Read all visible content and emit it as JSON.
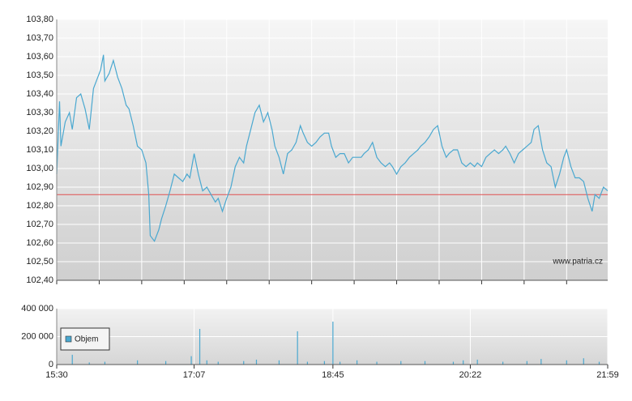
{
  "chart_data": [
    {
      "type": "line",
      "xlim": [
        "15:30",
        "21:59"
      ],
      "ylim": [
        102.4,
        103.8
      ],
      "yticks": [
        {
          "value": 102.4,
          "label": "102,40"
        },
        {
          "value": 102.5,
          "label": "102,50"
        },
        {
          "value": 102.6,
          "label": "102,60"
        },
        {
          "value": 102.7,
          "label": "102,70"
        },
        {
          "value": 102.8,
          "label": "102,80"
        },
        {
          "value": 102.9,
          "label": "102,90"
        },
        {
          "value": 103.0,
          "label": "103,00"
        },
        {
          "value": 103.1,
          "label": "103,10"
        },
        {
          "value": 103.2,
          "label": "103,20"
        },
        {
          "value": 103.3,
          "label": "103,30"
        },
        {
          "value": 103.4,
          "label": "103,40"
        },
        {
          "value": 103.5,
          "label": "103,50"
        },
        {
          "value": 103.6,
          "label": "103,60"
        },
        {
          "value": 103.7,
          "label": "103,70"
        },
        {
          "value": 103.8,
          "label": "103,80"
        }
      ],
      "grid": true,
      "reference": 102.86,
      "reference_color": "#e05050",
      "watermark": "www.patria.cz",
      "color": "#4aa8d0",
      "x": [
        "15:30",
        "15:32",
        "15:33",
        "15:36",
        "15:39",
        "15:41",
        "15:44",
        "15:47",
        "15:50",
        "15:53",
        "15:56",
        "15:59",
        "16:01",
        "16:03",
        "16:04",
        "16:07",
        "16:10",
        "16:13",
        "16:16",
        "16:19",
        "16:21",
        "16:24",
        "16:27",
        "16:30",
        "16:33",
        "16:35",
        "16:36",
        "16:39",
        "16:42",
        "16:44",
        "16:47",
        "16:50",
        "16:53",
        "16:56",
        "16:59",
        "17:02",
        "17:04",
        "17:07",
        "17:10",
        "17:13",
        "17:16",
        "17:19",
        "17:22",
        "17:24",
        "17:27",
        "17:30",
        "17:33",
        "17:36",
        "17:39",
        "17:42",
        "17:44",
        "17:47",
        "17:50",
        "17:53",
        "17:56",
        "17:59",
        "18:02",
        "18:04",
        "18:07",
        "18:10",
        "18:13",
        "18:16",
        "18:19",
        "18:22",
        "18:24",
        "18:27",
        "18:30",
        "18:33",
        "18:36",
        "18:39",
        "18:42",
        "18:44",
        "18:47",
        "18:50",
        "18:53",
        "18:56",
        "18:59",
        "19:02",
        "19:05",
        "19:07",
        "19:10",
        "19:13",
        "19:16",
        "19:19",
        "19:22",
        "19:25",
        "19:27",
        "19:30",
        "19:33",
        "19:36",
        "19:39",
        "19:42",
        "19:45",
        "19:47",
        "19:50",
        "19:53",
        "19:56",
        "19:59",
        "20:02",
        "20:05",
        "20:07",
        "20:10",
        "20:13",
        "20:16",
        "20:19",
        "20:22",
        "20:25",
        "20:27",
        "20:30",
        "20:33",
        "20:36",
        "20:39",
        "20:42",
        "20:45",
        "20:47",
        "20:50",
        "20:53",
        "20:56",
        "20:59",
        "21:02",
        "21:05",
        "21:07",
        "21:10",
        "21:13",
        "21:16",
        "21:19",
        "21:22",
        "21:25",
        "21:28",
        "21:30",
        "21:33",
        "21:36",
        "21:39",
        "21:42",
        "21:45",
        "21:48",
        "21:50",
        "21:53",
        "21:56",
        "21:59"
      ],
      "values": [
        102.97,
        103.36,
        103.12,
        103.25,
        103.3,
        103.21,
        103.38,
        103.4,
        103.32,
        103.21,
        103.43,
        103.49,
        103.53,
        103.61,
        103.47,
        103.51,
        103.58,
        103.49,
        103.43,
        103.34,
        103.32,
        103.23,
        103.12,
        103.1,
        103.03,
        102.86,
        102.64,
        102.61,
        102.67,
        102.73,
        102.8,
        102.88,
        102.97,
        102.95,
        102.93,
        102.97,
        102.95,
        103.08,
        102.97,
        102.88,
        102.9,
        102.86,
        102.82,
        102.84,
        102.77,
        102.84,
        102.9,
        103.01,
        103.06,
        103.03,
        103.12,
        103.21,
        103.3,
        103.34,
        103.25,
        103.3,
        103.21,
        103.12,
        103.06,
        102.97,
        103.08,
        103.1,
        103.14,
        103.23,
        103.19,
        103.14,
        103.12,
        103.14,
        103.17,
        103.19,
        103.19,
        103.12,
        103.06,
        103.08,
        103.08,
        103.03,
        103.06,
        103.06,
        103.06,
        103.08,
        103.1,
        103.14,
        103.06,
        103.03,
        103.01,
        103.03,
        103.01,
        102.97,
        103.01,
        103.03,
        103.06,
        103.08,
        103.1,
        103.12,
        103.14,
        103.17,
        103.21,
        103.23,
        103.12,
        103.06,
        103.08,
        103.1,
        103.1,
        103.03,
        103.01,
        103.03,
        103.01,
        103.03,
        103.01,
        103.06,
        103.08,
        103.1,
        103.08,
        103.1,
        103.12,
        103.08,
        103.03,
        103.08,
        103.1,
        103.12,
        103.14,
        103.21,
        103.23,
        103.1,
        103.03,
        103.01,
        102.9,
        102.97,
        103.06,
        103.1,
        103.01,
        102.95,
        102.95,
        102.93,
        102.84,
        102.77,
        102.86,
        102.84,
        102.9,
        102.88
      ]
    },
    {
      "type": "bar",
      "xlim": [
        "15:30",
        "21:59"
      ],
      "xticks": [
        "15:30",
        "17:07",
        "18:45",
        "20:22",
        "21:59"
      ],
      "ylim": [
        0,
        400000
      ],
      "yticks": [
        {
          "value": 0,
          "label": "0"
        },
        {
          "value": 200000,
          "label": "200 000"
        },
        {
          "value": 400000,
          "label": "400 000"
        }
      ],
      "grid": true,
      "legend": "top-left",
      "series": [
        {
          "name": "Objem",
          "color": "#4aa8d0",
          "x": [
            "15:41",
            "15:53",
            "16:04",
            "16:27",
            "16:47",
            "17:05",
            "17:11",
            "17:16",
            "17:24",
            "17:42",
            "17:51",
            "18:07",
            "18:20",
            "18:27",
            "18:39",
            "18:45",
            "18:50",
            "19:02",
            "19:16",
            "19:33",
            "19:50",
            "20:10",
            "20:17",
            "20:27",
            "20:45",
            "21:02",
            "21:12",
            "21:30",
            "21:42",
            "21:53"
          ],
          "values": [
            70000,
            15000,
            20000,
            30000,
            25000,
            60000,
            255000,
            30000,
            20000,
            25000,
            35000,
            30000,
            238000,
            20000,
            25000,
            307000,
            20000,
            30000,
            20000,
            25000,
            25000,
            20000,
            30000,
            35000,
            20000,
            25000,
            40000,
            30000,
            45000,
            20000
          ]
        }
      ]
    }
  ]
}
